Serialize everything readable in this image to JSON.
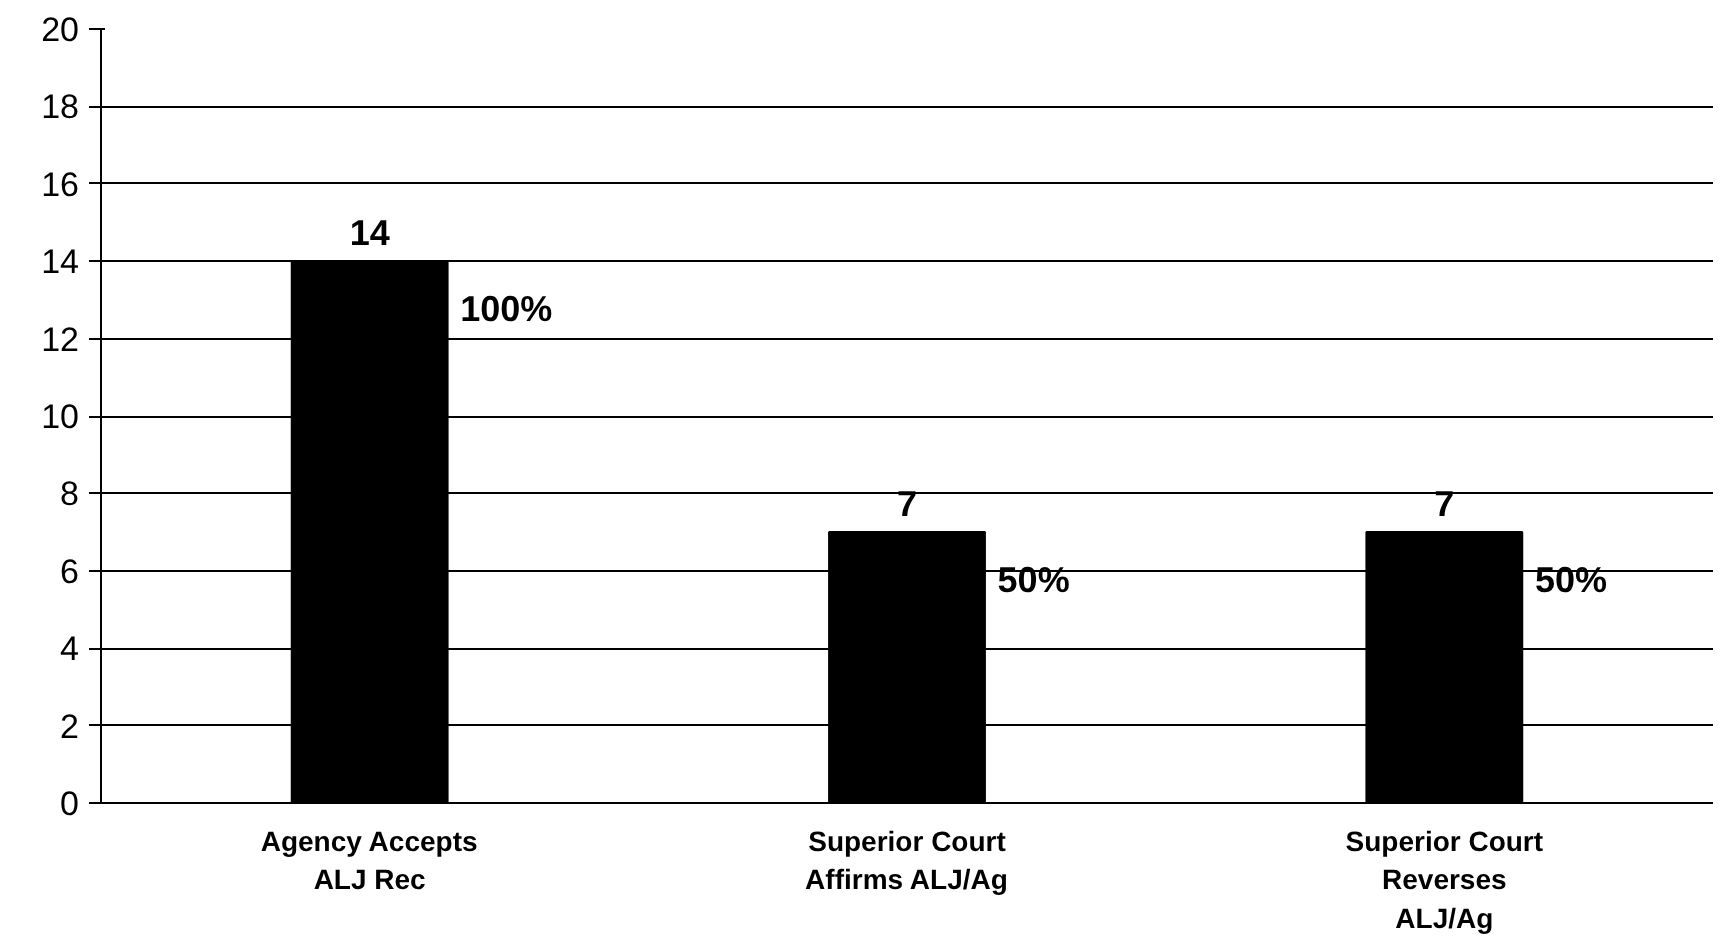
{
  "chart_data": {
    "type": "bar",
    "categories": [
      "Agency Accepts\nALJ Rec",
      "Superior Court\nAffirms ALJ/Ag",
      "Superior Court\nReverses\nALJ/Ag"
    ],
    "values": [
      14,
      7,
      7
    ],
    "color": "#000000",
    "data_labels": true,
    "ylim": [
      0,
      20
    ],
    "yticks": [
      0,
      2,
      4,
      6,
      8,
      10,
      12,
      14,
      16,
      18,
      20
    ],
    "grid": "y",
    "annotations": [
      "100%",
      "50%",
      "50%"
    ]
  }
}
